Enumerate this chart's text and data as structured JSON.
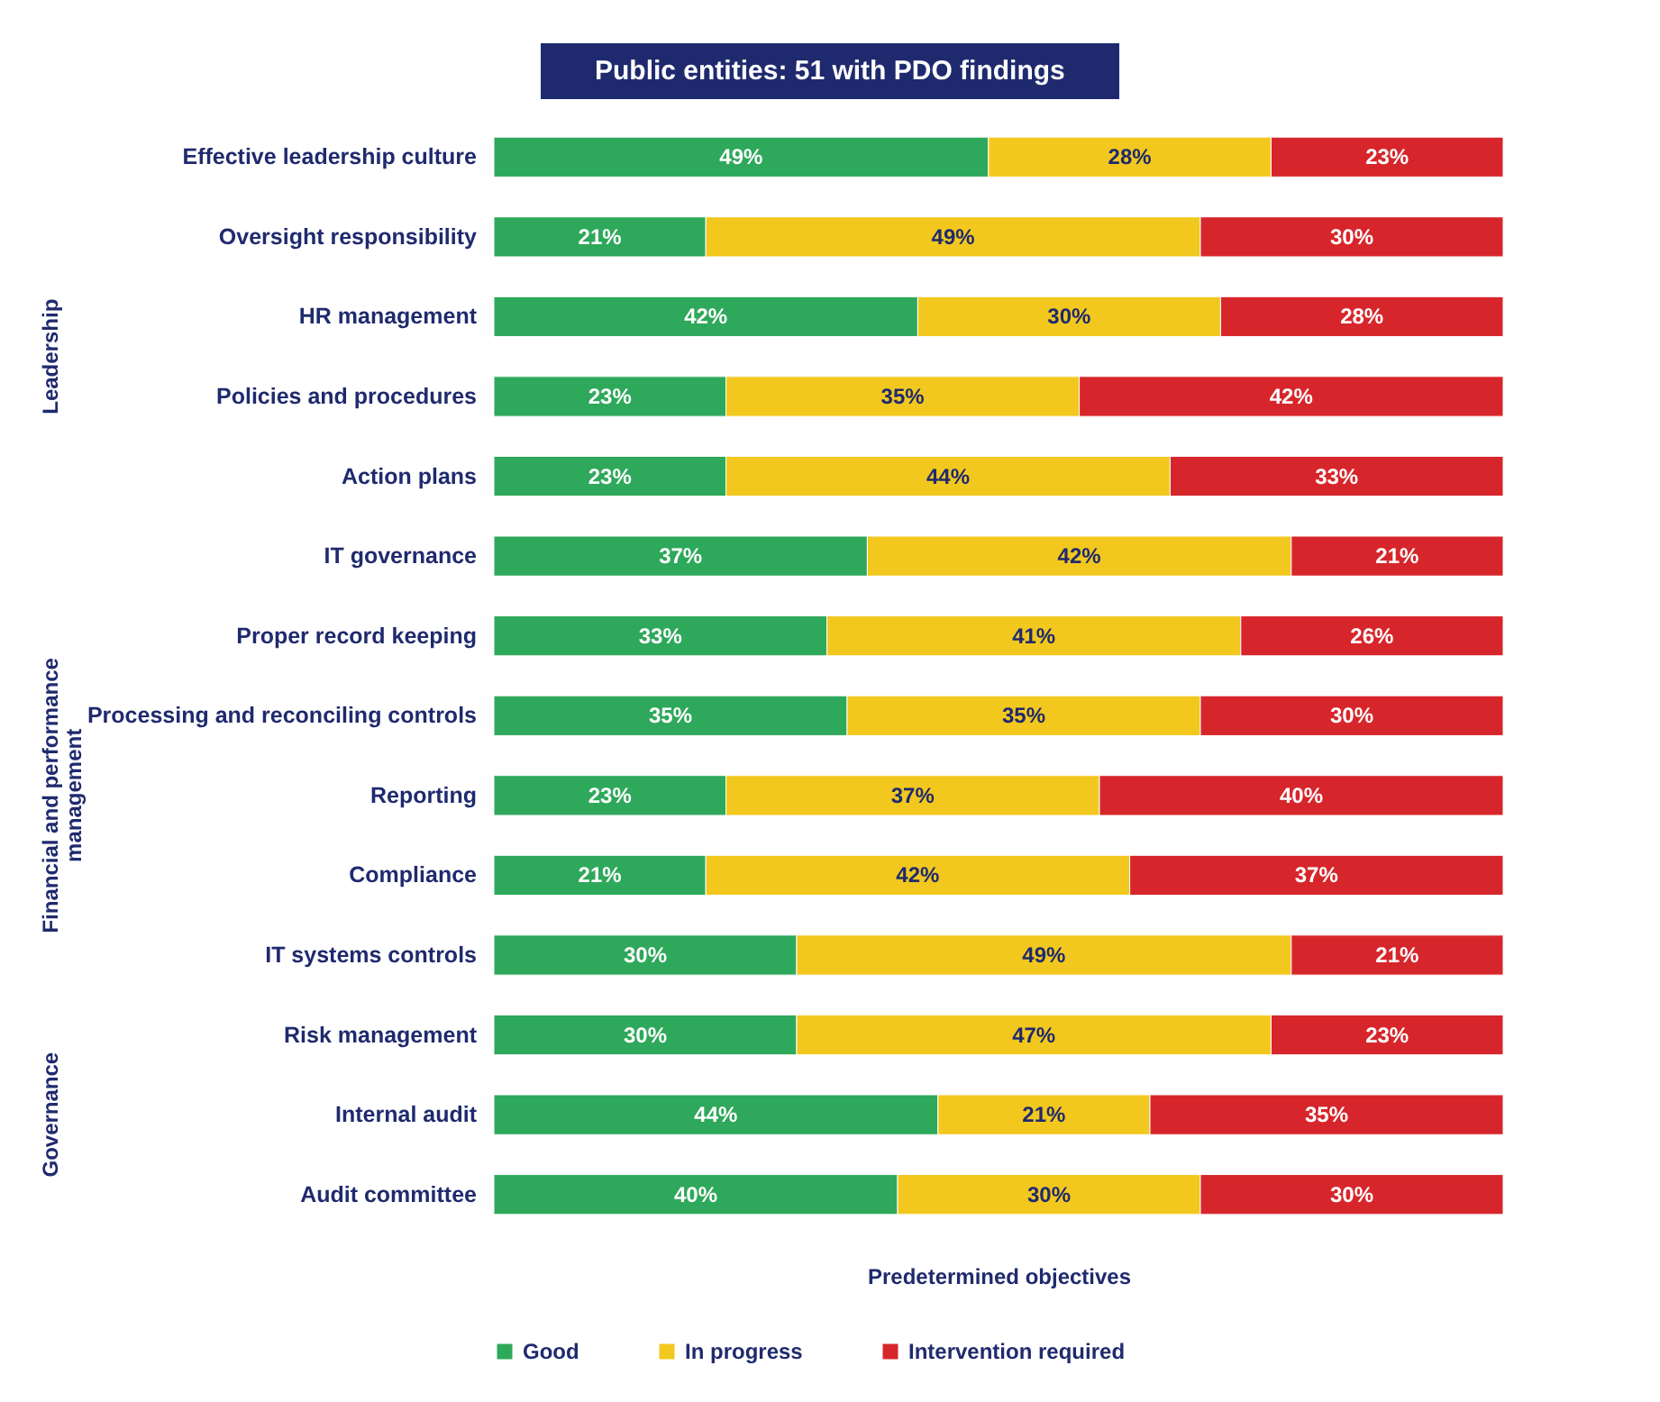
{
  "chart_data": {
    "type": "bar",
    "orientation": "horizontal",
    "stacked": true,
    "title": "Public entities: 51 with PDO findings",
    "xlabel": "Predetermined objectives",
    "categories": [
      "Effective leadership culture",
      "Oversight responsibility",
      "HR management",
      "Policies and procedures",
      "Action plans",
      "IT governance",
      "Proper record keeping",
      "Processing and reconciling controls",
      "Reporting",
      "Compliance",
      "IT systems controls",
      "Risk management",
      "Internal audit",
      "Audit committee"
    ],
    "series": [
      {
        "name": "Good",
        "color": "#2ea85a",
        "values": [
          49,
          21,
          42,
          23,
          23,
          37,
          33,
          35,
          23,
          21,
          30,
          30,
          44,
          40
        ],
        "value_labels": [
          "49%",
          "21%",
          "42%",
          "23%",
          "23%",
          "37%",
          "33%",
          "35%",
          "23%",
          "21%",
          "30%",
          "30%",
          "44%",
          "40%"
        ]
      },
      {
        "name": "In progress",
        "color": "#f2c81e",
        "values": [
          28,
          49,
          30,
          35,
          44,
          42,
          41,
          35,
          37,
          42,
          49,
          47,
          21,
          30
        ],
        "value_labels": [
          "28%",
          "49%",
          "30%",
          "35%",
          "44%",
          "42%",
          "41%",
          "35%",
          "37%",
          "42%",
          "49%",
          "47%",
          "21%",
          "30%"
        ]
      },
      {
        "name": "Intervention required",
        "color": "#d7262b",
        "values": [
          23,
          30,
          28,
          42,
          33,
          21,
          26,
          30,
          40,
          37,
          21,
          23,
          35,
          30
        ],
        "value_labels": [
          "23%",
          "30%",
          "28%",
          "42%",
          "33%",
          "21%",
          "26%",
          "30%",
          "40%",
          "37%",
          "21%",
          "23%",
          "35%",
          "30%"
        ]
      }
    ],
    "xlim": [
      0,
      100
    ],
    "tick_labels": "y",
    "legend": "bottom",
    "annotations": [
      "Leadership",
      "Financial and performance management",
      "Governance"
    ]
  }
}
